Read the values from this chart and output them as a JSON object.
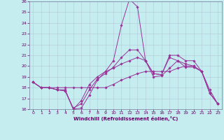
{
  "xlabel": "Windchill (Refroidissement éolien,°C)",
  "background_color": "#c5edf0",
  "line_color": "#993399",
  "grid_color": "#b0c8d8",
  "xlim": [
    -0.5,
    23.5
  ],
  "ylim": [
    16,
    26
  ],
  "xticks": [
    0,
    1,
    2,
    3,
    4,
    5,
    6,
    7,
    8,
    9,
    10,
    11,
    12,
    13,
    14,
    15,
    16,
    17,
    18,
    19,
    20,
    21,
    22,
    23
  ],
  "yticks": [
    16,
    17,
    18,
    19,
    20,
    21,
    22,
    23,
    24,
    25,
    26
  ],
  "series": [
    [
      18.5,
      18.0,
      18.0,
      17.8,
      17.8,
      16.0,
      16.1,
      17.3,
      18.7,
      19.5,
      20.5,
      23.8,
      26.2,
      25.5,
      20.5,
      19.0,
      19.1,
      19.8,
      20.5,
      19.9,
      19.9,
      19.5,
      17.5,
      16.5
    ],
    [
      18.5,
      18.0,
      18.0,
      17.8,
      17.7,
      16.1,
      16.5,
      17.8,
      18.8,
      19.3,
      19.9,
      20.8,
      21.5,
      21.5,
      20.5,
      19.3,
      19.2,
      21.0,
      21.0,
      20.5,
      20.5,
      19.5,
      17.8,
      16.5
    ],
    [
      18.5,
      18.0,
      18.0,
      17.8,
      17.7,
      16.0,
      16.8,
      18.3,
      19.0,
      19.5,
      19.8,
      20.2,
      20.5,
      20.8,
      20.5,
      19.3,
      19.2,
      20.8,
      20.5,
      20.2,
      20.0,
      19.5,
      17.5,
      16.5
    ],
    [
      18.5,
      18.0,
      18.0,
      18.0,
      18.0,
      18.0,
      18.0,
      18.0,
      18.0,
      18.0,
      18.3,
      18.7,
      19.0,
      19.3,
      19.5,
      19.5,
      19.5,
      19.5,
      19.8,
      20.0,
      20.0,
      19.5,
      17.5,
      16.5
    ]
  ]
}
